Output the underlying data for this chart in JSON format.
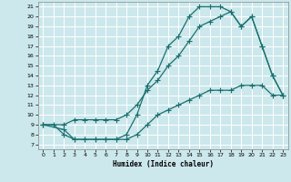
{
  "xlabel": "Humidex (Indice chaleur)",
  "bg_color": "#cce8ec",
  "grid_color": "#ffffff",
  "line_color": "#1a7070",
  "xlim": [
    -0.5,
    23.5
  ],
  "ylim": [
    6.5,
    21.5
  ],
  "xticks": [
    0,
    1,
    2,
    3,
    4,
    5,
    6,
    7,
    8,
    9,
    10,
    11,
    12,
    13,
    14,
    15,
    16,
    17,
    18,
    19,
    20,
    21,
    22,
    23
  ],
  "yticks": [
    7,
    8,
    9,
    10,
    11,
    12,
    13,
    14,
    15,
    16,
    17,
    18,
    19,
    20,
    21
  ],
  "line1_x": [
    0,
    1,
    2,
    3,
    4,
    5,
    6,
    7,
    8,
    9,
    10,
    11,
    12,
    13,
    14,
    15,
    16,
    17,
    18,
    19,
    20,
    21,
    22,
    23
  ],
  "line1_y": [
    9,
    9,
    8,
    7.5,
    7.5,
    7.5,
    7.5,
    7.5,
    8,
    10,
    13,
    14.5,
    17,
    18,
    20,
    21,
    21,
    21,
    20.5,
    19,
    20,
    17,
    14,
    12
  ],
  "line2_x": [
    0,
    2,
    3,
    4,
    5,
    6,
    7,
    8,
    9,
    10,
    11,
    12,
    13,
    14,
    15,
    16,
    17,
    18,
    19,
    20,
    21,
    22,
    23
  ],
  "line2_y": [
    9,
    9,
    9.5,
    9.5,
    9.5,
    9.5,
    9.5,
    10,
    11,
    12.5,
    13.5,
    15,
    16,
    17.5,
    19,
    19.5,
    20,
    20.5,
    19,
    20,
    17,
    14,
    12
  ],
  "line3_x": [
    0,
    2,
    3,
    4,
    5,
    6,
    7,
    8,
    9,
    10,
    11,
    12,
    13,
    14,
    15,
    16,
    17,
    18,
    19,
    20,
    21,
    22,
    23
  ],
  "line3_y": [
    9,
    8.5,
    7.5,
    7.5,
    7.5,
    7.5,
    7.5,
    7.5,
    8,
    9,
    10,
    10.5,
    11,
    11.5,
    12,
    12.5,
    12.5,
    12.5,
    13,
    13,
    13,
    12,
    12
  ]
}
